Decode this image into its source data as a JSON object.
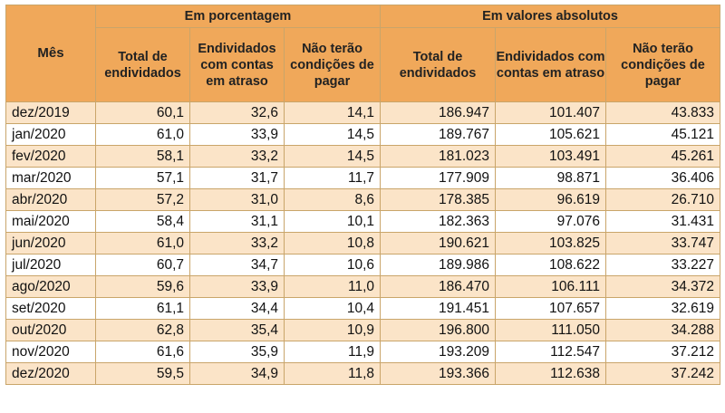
{
  "chart_data": {
    "type": "table",
    "group_headers": [
      "Em porcentagem",
      "Em valores absolutos"
    ],
    "month_header": "Mês",
    "columns": [
      "Total de endividados",
      "Endividados com contas em atraso",
      "Não terão condições de pagar",
      "Total de endividados",
      "Endividados com contas em atraso",
      "Não terão condições de pagar"
    ],
    "rows": [
      {
        "month": "dez/2019",
        "values": [
          "60,1",
          "32,6",
          "14,1",
          "186.947",
          "101.407",
          "43.833"
        ]
      },
      {
        "month": "jan/2020",
        "values": [
          "61,0",
          "33,9",
          "14,5",
          "189.767",
          "105.621",
          "45.121"
        ]
      },
      {
        "month": "fev/2020",
        "values": [
          "58,1",
          "33,2",
          "14,5",
          "181.023",
          "103.491",
          "45.261"
        ]
      },
      {
        "month": "mar/2020",
        "values": [
          "57,1",
          "31,7",
          "11,7",
          "177.909",
          "98.871",
          "36.406"
        ]
      },
      {
        "month": "abr/2020",
        "values": [
          "57,2",
          "31,0",
          "8,6",
          "178.385",
          "96.619",
          "26.710"
        ]
      },
      {
        "month": "mai/2020",
        "values": [
          "58,4",
          "31,1",
          "10,1",
          "182.363",
          "97.076",
          "31.431"
        ]
      },
      {
        "month": "jun/2020",
        "values": [
          "61,0",
          "33,2",
          "10,8",
          "190.621",
          "103.825",
          "33.747"
        ]
      },
      {
        "month": "jul/2020",
        "values": [
          "60,7",
          "34,7",
          "10,6",
          "189.986",
          "108.622",
          "33.227"
        ]
      },
      {
        "month": "ago/2020",
        "values": [
          "59,6",
          "33,9",
          "11,0",
          "186.470",
          "106.111",
          "34.372"
        ]
      },
      {
        "month": "set/2020",
        "values": [
          "61,1",
          "34,4",
          "10,4",
          "191.451",
          "107.657",
          "32.619"
        ]
      },
      {
        "month": "out/2020",
        "values": [
          "62,8",
          "35,4",
          "10,9",
          "196.800",
          "111.050",
          "34.288"
        ]
      },
      {
        "month": "nov/2020",
        "values": [
          "61,6",
          "35,9",
          "11,9",
          "193.209",
          "112.547",
          "37.212"
        ]
      },
      {
        "month": "dez/2020",
        "values": [
          "59,5",
          "34,9",
          "11,8",
          "193.366",
          "112.638",
          "37.242"
        ]
      }
    ],
    "colors": {
      "header": "#f0a85a",
      "band": "#fbe4c8",
      "border": "#c9a56a"
    }
  }
}
